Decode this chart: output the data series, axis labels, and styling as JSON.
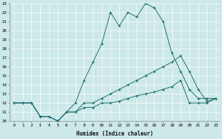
{
  "xlabel": "Humidex (Indice chaleur)",
  "xlim": [
    -0.5,
    23.5
  ],
  "ylim": [
    10,
    23
  ],
  "xticks": [
    0,
    1,
    2,
    3,
    4,
    5,
    6,
    7,
    8,
    9,
    10,
    11,
    12,
    13,
    14,
    15,
    16,
    17,
    18,
    19,
    20,
    21,
    22,
    23
  ],
  "yticks": [
    10,
    11,
    12,
    13,
    14,
    15,
    16,
    17,
    18,
    19,
    20,
    21,
    22,
    23
  ],
  "background_color": "#cce8e8",
  "grid_color": "#ffffff",
  "line_color": "#1a6b6b",
  "curves": [
    {
      "x": [
        0,
        1,
        2,
        3,
        4,
        5,
        6,
        7,
        8,
        9,
        10,
        11,
        12,
        13,
        14,
        15,
        16,
        17,
        18,
        19,
        20,
        21,
        22,
        23
      ],
      "y": [
        12,
        12,
        12,
        10.5,
        10.5,
        10,
        11,
        12,
        14.5,
        16.5,
        18.5,
        22,
        20.5,
        22,
        21.5,
        23,
        22.5,
        21,
        17.5,
        15.5,
        13.5,
        12.5,
        12.5,
        12.5
      ]
    },
    {
      "x": [
        0,
        1,
        2,
        3,
        4,
        5,
        6,
        7,
        8,
        9,
        10,
        11,
        12,
        13,
        14,
        15,
        16,
        17,
        18,
        19,
        20,
        21,
        22,
        23
      ],
      "y": [
        12,
        12,
        12,
        10.5,
        10.5,
        10,
        11,
        11,
        12,
        12,
        12.5,
        13,
        13.5,
        14,
        14.5,
        15,
        15.5,
        16,
        16.5,
        17.2,
        15.5,
        13.5,
        12.2,
        12.5
      ]
    },
    {
      "x": [
        0,
        1,
        2,
        3,
        4,
        5,
        6,
        7,
        8,
        9,
        10,
        11,
        12,
        13,
        14,
        15,
        16,
        17,
        18,
        19,
        20,
        21,
        22,
        23
      ],
      "y": [
        12,
        12,
        12,
        10.5,
        10.5,
        10,
        11,
        11,
        11.5,
        11.5,
        12,
        12,
        12.2,
        12.5,
        12.8,
        13,
        13.2,
        13.5,
        13.8,
        14.5,
        12.0,
        12.0,
        12.0,
        12.5
      ]
    }
  ]
}
